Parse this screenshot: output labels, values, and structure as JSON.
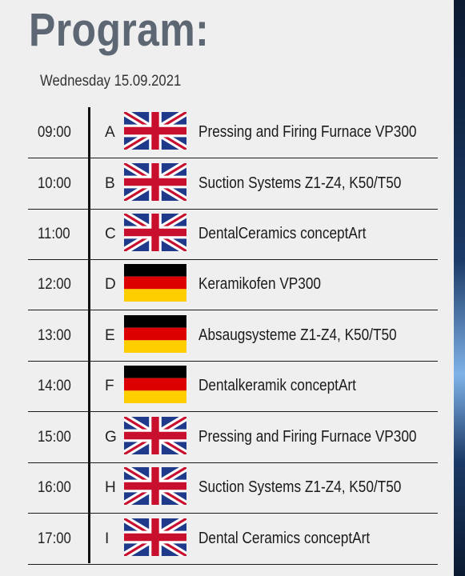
{
  "page": {
    "title": "Program:",
    "date": "Wednesday 15.09.2021"
  },
  "colors": {
    "title": "#5d6673",
    "background": "#efefef",
    "uk_blue": "#1f3a8a",
    "uk_red": "#c8102e",
    "de_black": "#000000",
    "de_red": "#dd0000",
    "de_gold": "#ffce00"
  },
  "schedule": [
    {
      "time": "09:00",
      "letter": "A",
      "flag": "uk-flag-icon",
      "title": "Pressing and Firing Furnace VP300"
    },
    {
      "time": "10:00",
      "letter": "B",
      "flag": "uk-flag-icon",
      "title": "Suction Systems Z1-Z4, K50/T50"
    },
    {
      "time": "11:00",
      "letter": "C",
      "flag": "uk-flag-icon",
      "title": "DentalCeramics conceptArt"
    },
    {
      "time": "12:00",
      "letter": "D",
      "flag": "germany-flag-icon",
      "title": "Keramikofen VP300"
    },
    {
      "time": "13:00",
      "letter": "E",
      "flag": "germany-flag-icon",
      "title": "Absaugsysteme Z1-Z4, K50/T50"
    },
    {
      "time": "14:00",
      "letter": "F",
      "flag": "germany-flag-icon",
      "title": "Dentalkeramik conceptArt"
    },
    {
      "time": "15:00",
      "letter": "G",
      "flag": "uk-flag-icon",
      "title": "Pressing and Firing Furnace VP300"
    },
    {
      "time": "16:00",
      "letter": "H",
      "flag": "uk-flag-icon",
      "title": "Suction Systems Z1-Z4, K50/T50"
    },
    {
      "time": "17:00",
      "letter": "I",
      "flag": "uk-flag-icon",
      "title": "Dental Ceramics conceptArt"
    }
  ]
}
